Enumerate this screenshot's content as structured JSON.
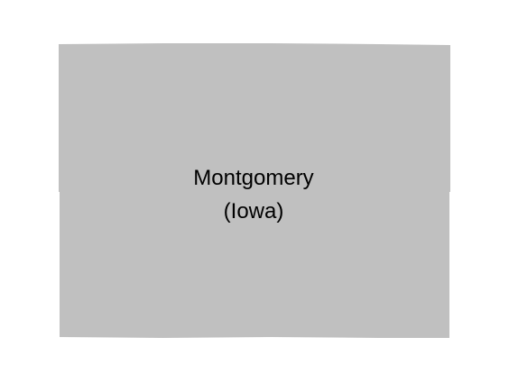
{
  "map": {
    "region": {
      "name": "Montgomery",
      "state": "(Iowa)",
      "fill_color": "#c0c0c0"
    },
    "background_color": "#ffffff"
  }
}
